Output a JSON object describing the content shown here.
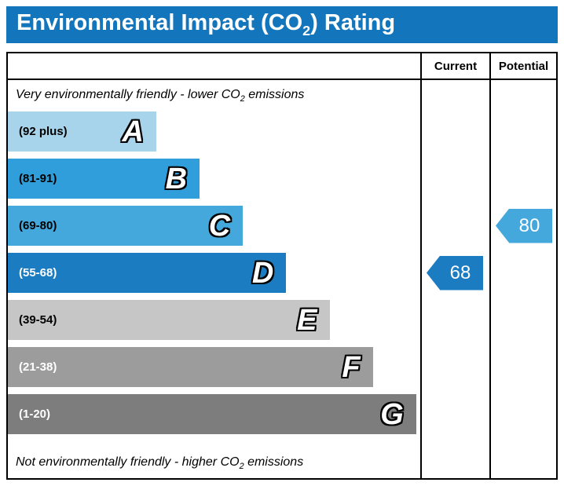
{
  "title": {
    "prefix": "Environmental Impact (CO",
    "subscript": "2",
    "suffix": ") Rating",
    "bg": "#1375bb",
    "fg": "#ffffff"
  },
  "columns": {
    "current": "Current",
    "potential": "Potential"
  },
  "captions": {
    "top": {
      "prefix": "Very environmentally friendly - lower CO",
      "subscript": "2",
      "suffix": " emissions"
    },
    "bottom": {
      "prefix": "Not environmentally friendly - higher CO",
      "subscript": "2",
      "suffix": " emissions"
    }
  },
  "bands": [
    {
      "letter": "A",
      "range": "(92 plus)",
      "color": "#a8d4eb",
      "text_color": "#000000",
      "width": "36%"
    },
    {
      "letter": "B",
      "range": "(81-91)",
      "color": "#2f9eda",
      "text_color": "#000000",
      "width": "46.5%"
    },
    {
      "letter": "C",
      "range": "(69-80)",
      "color": "#45a8dc",
      "text_color": "#000000",
      "width": "57%"
    },
    {
      "letter": "D",
      "range": "(55-68)",
      "color": "#1b7cc1",
      "text_color": "#ffffff",
      "width": "67.5%"
    },
    {
      "letter": "E",
      "range": "(39-54)",
      "color": "#c6c6c6",
      "text_color": "#000000",
      "width": "78%"
    },
    {
      "letter": "F",
      "range": "(21-38)",
      "color": "#9c9c9c",
      "text_color": "#ffffff",
      "width": "88.5%"
    },
    {
      "letter": "G",
      "range": "(1-20)",
      "color": "#7d7d7d",
      "text_color": "#ffffff",
      "width": "99%"
    }
  ],
  "markers": {
    "current": {
      "value": "68",
      "color": "#1b7cc1",
      "band_index": 3
    },
    "potential": {
      "value": "80",
      "color": "#45a8dc",
      "band_index": 2
    }
  },
  "chart_data": {
    "type": "bar",
    "title": "Environmental Impact (CO2) Rating",
    "categories": [
      "A",
      "B",
      "C",
      "D",
      "E",
      "F",
      "G"
    ],
    "band_ranges": [
      "92 plus",
      "81-91",
      "69-80",
      "55-68",
      "39-54",
      "21-38",
      "1-20"
    ],
    "values": [
      36,
      46.5,
      57,
      67.5,
      78,
      88.5,
      99
    ],
    "value_unit": "relative bar width percent",
    "annotations": [
      {
        "label": "Current",
        "value": 68,
        "band": "D"
      },
      {
        "label": "Potential",
        "value": 80,
        "band": "C"
      }
    ],
    "notes": [
      "Very environmentally friendly - lower CO2 emissions",
      "Not environmentally friendly - higher CO2 emissions"
    ],
    "legend_position": "right columns"
  }
}
